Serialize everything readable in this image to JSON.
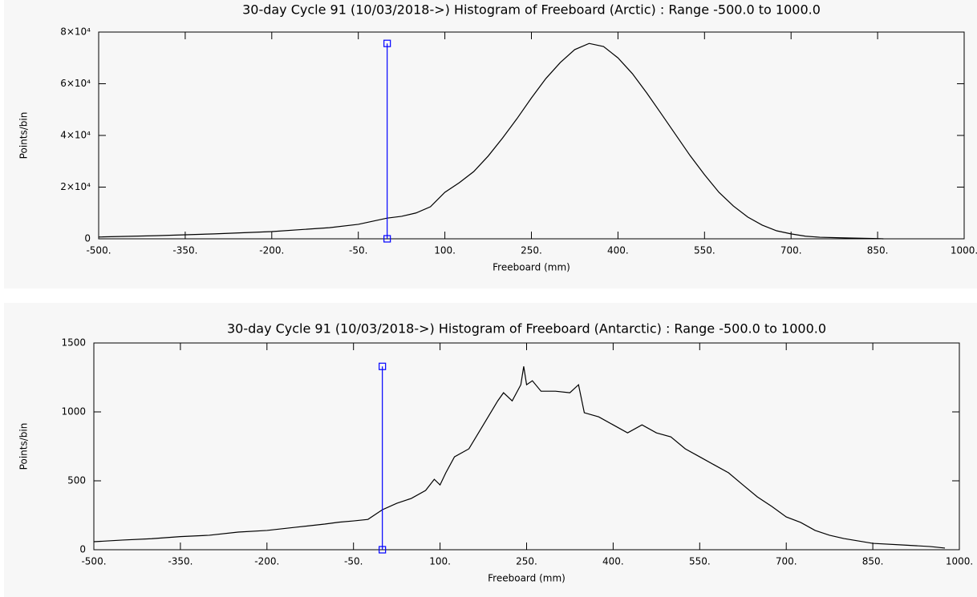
{
  "chart_data": [
    {
      "type": "line",
      "title": "30-day Cycle 91 (10/03/2018->) Histogram of Freeboard (Arctic) :  Range -500.0 to 1000.0",
      "x_label": "Freeboard (mm)",
      "y_label": "Points/bin",
      "color": "#000000",
      "x": [
        -500,
        -400,
        -300,
        -200,
        -100,
        -50,
        0,
        25,
        50,
        75,
        100,
        125,
        150,
        175,
        200,
        225,
        250,
        275,
        300,
        325,
        350,
        375,
        400,
        425,
        450,
        475,
        500,
        525,
        550,
        575,
        600,
        625,
        650,
        675,
        700,
        725,
        750,
        800,
        850,
        860
      ],
      "values": [
        700,
        1200,
        1900,
        2800,
        4300,
        5600,
        8000,
        8700,
        10000,
        12400,
        18000,
        21700,
        26000,
        32000,
        39000,
        46500,
        54500,
        62000,
        68200,
        73200,
        75600,
        74400,
        70000,
        63900,
        56400,
        48400,
        40300,
        32200,
        24800,
        18000,
        12700,
        8400,
        5300,
        3100,
        1900,
        1000,
        600,
        300,
        100,
        0
      ],
      "marker": {
        "x": 0,
        "values": [
          0,
          75600
        ],
        "color": "#0000ff"
      },
      "xlim": [
        -500,
        1000
      ],
      "xticks": [
        {
          "value": -500,
          "label": "-500."
        },
        {
          "value": -350,
          "label": "-350."
        },
        {
          "value": -200,
          "label": "-200."
        },
        {
          "value": -50,
          "label": "-50."
        },
        {
          "value": 100,
          "label": "100."
        },
        {
          "value": 250,
          "label": "250."
        },
        {
          "value": 400,
          "label": "400."
        },
        {
          "value": 550,
          "label": "550."
        },
        {
          "value": 700,
          "label": "700."
        },
        {
          "value": 850,
          "label": "850."
        },
        {
          "value": 1000,
          "label": "1000."
        }
      ],
      "ylim": [
        0,
        80000
      ],
      "yticks": [
        0,
        {
          "value": 20000,
          "label": "2×10⁴"
        },
        {
          "value": 40000,
          "label": "4×10⁴"
        },
        {
          "value": 60000,
          "label": "6×10⁴"
        },
        {
          "value": 80000,
          "label": "8×10⁴"
        }
      ]
    },
    {
      "type": "line",
      "title": "30-day Cycle 91 (10/03/2018->) Histogram of Freeboard (Antarctic) :  Range -500.0 to 1000.0",
      "x_label": "Freeboard (mm)",
      "y_label": "Points/bin",
      "color": "#000000",
      "x": [
        -500,
        -450,
        -400,
        -350,
        -300,
        -250,
        -200,
        -150,
        -100,
        -75,
        -50,
        -25,
        0,
        25,
        50,
        75,
        90,
        100,
        110,
        125,
        150,
        175,
        200,
        210,
        225,
        240,
        245,
        250,
        260,
        275,
        300,
        325,
        340,
        350,
        375,
        400,
        425,
        450,
        475,
        500,
        525,
        550,
        575,
        600,
        625,
        650,
        675,
        700,
        725,
        750,
        775,
        800,
        850,
        900,
        950,
        975
      ],
      "values": [
        58,
        70,
        80,
        95,
        105,
        128,
        140,
        163,
        186,
        200,
        209,
        220,
        290,
        337,
        372,
        430,
        511,
        470,
        558,
        674,
        732,
        906,
        1080,
        1139,
        1080,
        1197,
        1330,
        1197,
        1226,
        1150,
        1150,
        1139,
        1197,
        994,
        964,
        906,
        848,
        906,
        848,
        819,
        732,
        674,
        616,
        558,
        470,
        383,
        314,
        238,
        198,
        140,
        105,
        81,
        46,
        35,
        23,
        12
      ],
      "marker": {
        "x": 0,
        "values": [
          0,
          1330
        ],
        "color": "#0000ff"
      },
      "xlim": [
        -500,
        1000
      ],
      "xticks": [
        {
          "value": -500,
          "label": "-500."
        },
        {
          "value": -350,
          "label": "-350."
        },
        {
          "value": -200,
          "label": "-200."
        },
        {
          "value": -50,
          "label": "-50."
        },
        {
          "value": 100,
          "label": "100."
        },
        {
          "value": 250,
          "label": "250."
        },
        {
          "value": 400,
          "label": "400."
        },
        {
          "value": 550,
          "label": "550."
        },
        {
          "value": 700,
          "label": "700."
        },
        {
          "value": 850,
          "label": "850."
        },
        {
          "value": 1000,
          "label": "1000."
        }
      ],
      "ylim": [
        0,
        1500
      ],
      "yticks": [
        0,
        500,
        1000,
        1500
      ]
    }
  ]
}
